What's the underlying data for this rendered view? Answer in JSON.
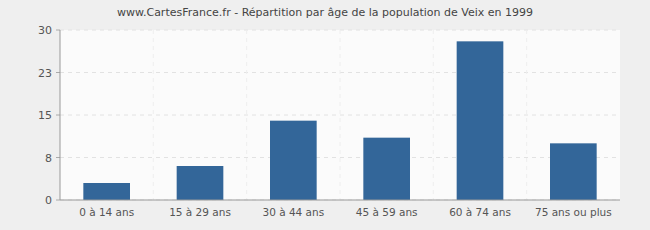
{
  "chart_data": {
    "type": "bar",
    "title": "www.CartesFrance.fr - Répartition par âge de la population de Veix en 1999",
    "categories": [
      "0 à 14 ans",
      "15 à 29 ans",
      "30 à 44 ans",
      "45 à 59 ans",
      "60 à 74 ans",
      "75 ans ou plus"
    ],
    "values": [
      3,
      6,
      14,
      11,
      28,
      10
    ],
    "color": "#336699",
    "ylim": [
      0,
      30
    ],
    "yticks": [
      0,
      {
        "value": 7.5,
        "label": "8"
      },
      15,
      {
        "value": 22.5,
        "label": "23"
      },
      30
    ],
    "grid": true
  }
}
